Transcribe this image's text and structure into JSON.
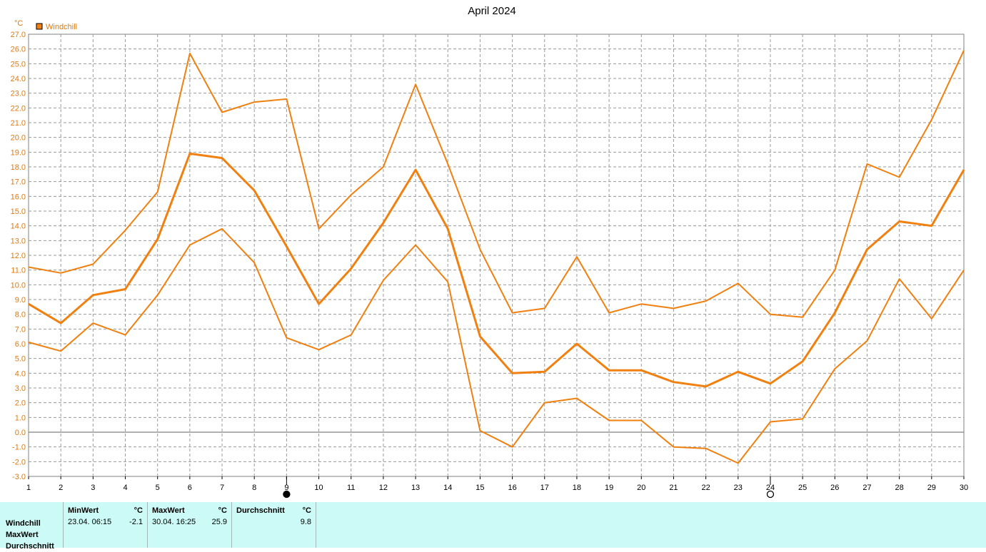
{
  "chart_data": {
    "type": "line",
    "title": "April 2024",
    "ylabel": "°C",
    "legend": [
      "Windchill"
    ],
    "legend_position": "top-left",
    "x": [
      1,
      2,
      3,
      4,
      5,
      6,
      7,
      8,
      9,
      10,
      11,
      12,
      13,
      14,
      15,
      16,
      17,
      18,
      19,
      20,
      21,
      22,
      23,
      24,
      25,
      26,
      27,
      28,
      29,
      30
    ],
    "ylim": [
      -3.0,
      27.0
    ],
    "ytick_step": 1.0,
    "grid": true,
    "colors": {
      "series": "#f08010",
      "axis_text": "#e07a10"
    },
    "series": [
      {
        "name": "Windchill",
        "role": "max",
        "values": [
          11.2,
          10.8,
          11.4,
          13.7,
          16.3,
          25.7,
          21.7,
          22.4,
          22.6,
          13.8,
          16.1,
          18.0,
          23.6,
          18.2,
          12.4,
          8.1,
          8.4,
          11.9,
          8.1,
          8.7,
          8.4,
          8.9,
          10.1,
          8.0,
          7.8,
          11.0,
          18.2,
          17.3,
          21.2,
          25.9
        ]
      },
      {
        "name": "Windchill",
        "role": "average",
        "values": [
          8.7,
          7.4,
          9.3,
          9.7,
          13.1,
          18.9,
          18.6,
          16.4,
          12.6,
          8.7,
          11.1,
          14.2,
          17.8,
          13.8,
          6.5,
          4.0,
          4.1,
          6.0,
          4.2,
          4.2,
          3.4,
          3.1,
          4.1,
          3.3,
          4.8,
          8.1,
          12.4,
          14.3,
          14.0,
          17.8
        ]
      },
      {
        "name": "Windchill",
        "role": "min",
        "values": [
          6.1,
          5.5,
          7.4,
          6.6,
          9.3,
          12.7,
          13.8,
          11.5,
          6.4,
          5.6,
          6.6,
          10.3,
          12.7,
          10.2,
          0.1,
          -1.0,
          2.0,
          2.3,
          0.8,
          0.8,
          -1.0,
          -1.1,
          -2.1,
          0.7,
          0.9,
          4.3,
          6.2,
          10.4,
          7.7,
          11.0
        ]
      }
    ],
    "moon_markers": [
      {
        "day": 9,
        "phase": "new-moon"
      },
      {
        "day": 24,
        "phase": "full-moon"
      }
    ]
  },
  "stats": {
    "row_labels": [
      "Windchill",
      "MaxWert",
      "Durchschnitt"
    ],
    "min": {
      "header": "MinWert",
      "unit": "°C",
      "date": "23.04.  06:15",
      "value": "-2.1"
    },
    "max": {
      "header": "MaxWert",
      "unit": "°C",
      "date": "30.04.  16:25",
      "value": "25.9"
    },
    "avg": {
      "header": "Durchschnitt",
      "unit": "°C",
      "value": "9.8"
    }
  }
}
